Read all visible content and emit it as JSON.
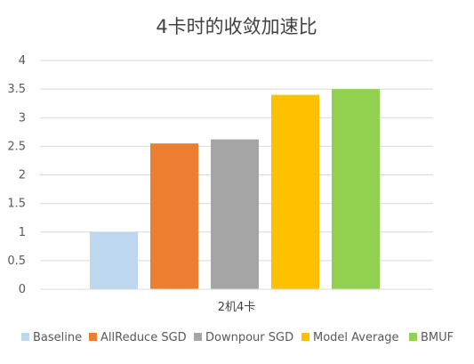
{
  "chart_data": {
    "type": "bar",
    "title": "4卡时的收敛加速比",
    "categories": [
      "2机4卡"
    ],
    "series": [
      {
        "name": "Baseline",
        "values": [
          1.0
        ],
        "color": "#bdd7ee"
      },
      {
        "name": "AllReduce SGD",
        "values": [
          2.55
        ],
        "color": "#ed7d31"
      },
      {
        "name": "Downpour SGD",
        "values": [
          2.62
        ],
        "color": "#a5a5a5"
      },
      {
        "name": "Model Average",
        "values": [
          3.4
        ],
        "color": "#ffc000"
      },
      {
        "name": "BMUF",
        "values": [
          3.5
        ],
        "color": "#92d050"
      }
    ],
    "yticks": [
      "0",
      "0.5",
      "1",
      "1.5",
      "2",
      "2.5",
      "3",
      "3.5",
      "4"
    ],
    "ylim": [
      0,
      4
    ],
    "grid": true,
    "legend": "bottom"
  }
}
